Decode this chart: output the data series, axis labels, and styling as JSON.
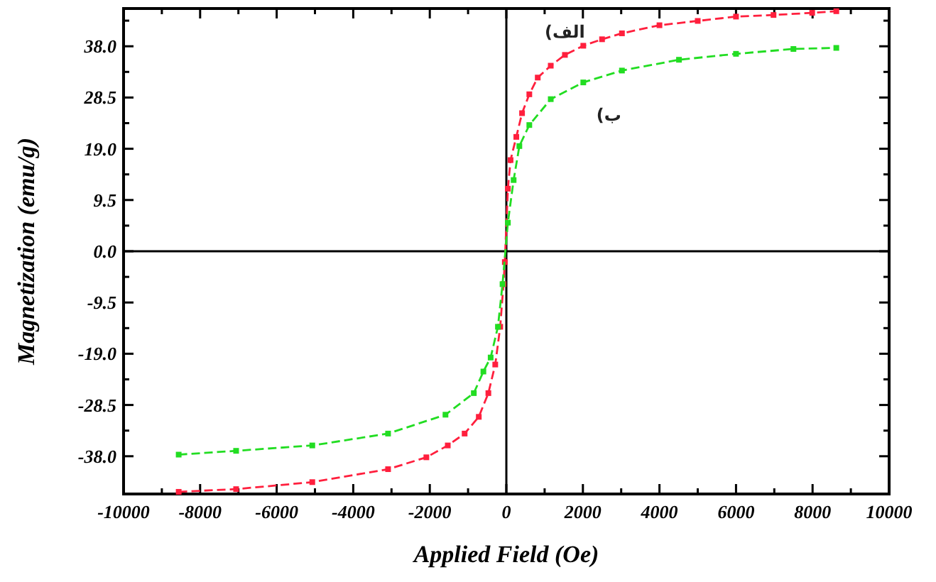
{
  "chart_data": {
    "type": "line",
    "xlabel": "Applied Field (Oe)",
    "ylabel": "Magnetization (emu/g)",
    "xlim": [
      -10000,
      10000
    ],
    "xticks": [
      -10000,
      {
        "value": -9000,
        "label": null
      },
      -8000,
      {
        "value": -7000,
        "label": null
      },
      -6000,
      {
        "value": -5000,
        "label": null
      },
      -4000,
      {
        "value": -3000,
        "label": null
      },
      -2000,
      {
        "value": -1000,
        "label": null
      },
      0,
      {
        "value": 1000,
        "label": null
      },
      2000,
      {
        "value": 3000,
        "label": null
      },
      4000,
      {
        "value": 5000,
        "label": null
      },
      6000,
      {
        "value": 7000,
        "label": null
      },
      8000,
      {
        "value": 9000,
        "label": null
      },
      10000
    ],
    "ylim": [
      -45,
      45
    ],
    "yticks": [
      {
        "value": -38,
        "label": "-38.0"
      },
      {
        "value": -33.25,
        "label": null
      },
      {
        "value": -28.5,
        "label": "-28.5"
      },
      {
        "value": -23.75,
        "label": null
      },
      {
        "value": -19,
        "label": "-19.0"
      },
      {
        "value": -14.25,
        "label": null
      },
      {
        "value": -9.5,
        "label": "-9.5"
      },
      {
        "value": -4.75,
        "label": null
      },
      {
        "value": 0,
        "label": "0.0"
      },
      {
        "value": 4.75,
        "label": null
      },
      {
        "value": 9.5,
        "label": "9.5"
      },
      {
        "value": 14.25,
        "label": null
      },
      {
        "value": 19,
        "label": "19.0"
      },
      {
        "value": 23.75,
        "label": null
      },
      {
        "value": 28.5,
        "label": "28.5"
      },
      {
        "value": 33.25,
        "label": null
      },
      {
        "value": 38,
        "label": "38.0"
      },
      {
        "value": 42.75,
        "label": null
      }
    ],
    "marker": "square",
    "line_style": "dashed",
    "series": [
      {
        "name": "الف)",
        "color": "#ff1f3d",
        "x": [
          -8560,
          -7060,
          -5070,
          -3090,
          -2090,
          -1530,
          -1090,
          -720,
          -470,
          -290,
          -160,
          -75,
          -40,
          40,
          110,
          260,
          410,
          600,
          820,
          1160,
          1530,
          2010,
          2500,
          3020,
          4000,
          5000,
          6000,
          6980,
          7990,
          8620
        ],
        "values": [
          -44.6,
          -44.1,
          -42.8,
          -40.4,
          -38.2,
          -36.0,
          -33.8,
          -30.7,
          -26.3,
          -21.0,
          -14.0,
          -6.1,
          -2.0,
          11.6,
          16.9,
          21.2,
          25.6,
          29.1,
          32.2,
          34.4,
          36.4,
          38.1,
          39.3,
          40.4,
          41.9,
          42.7,
          43.5,
          43.8,
          44.2,
          44.5
        ]
      },
      {
        "name": "ب)",
        "color": "#22dd22",
        "x": [
          -8560,
          -7060,
          -5070,
          -3090,
          -1590,
          -850,
          -600,
          -410,
          -220,
          -100,
          40,
          190,
          340,
          600,
          1160,
          2010,
          3020,
          4510,
          6000,
          7500,
          8620
        ],
        "values": [
          -37.7,
          -37.0,
          -36.0,
          -33.8,
          -30.3,
          -26.3,
          -22.3,
          -19.7,
          -14.0,
          -6.1,
          5.3,
          13.2,
          19.5,
          23.4,
          28.2,
          31.3,
          33.5,
          35.5,
          36.6,
          37.5,
          37.7
        ]
      }
    ]
  }
}
